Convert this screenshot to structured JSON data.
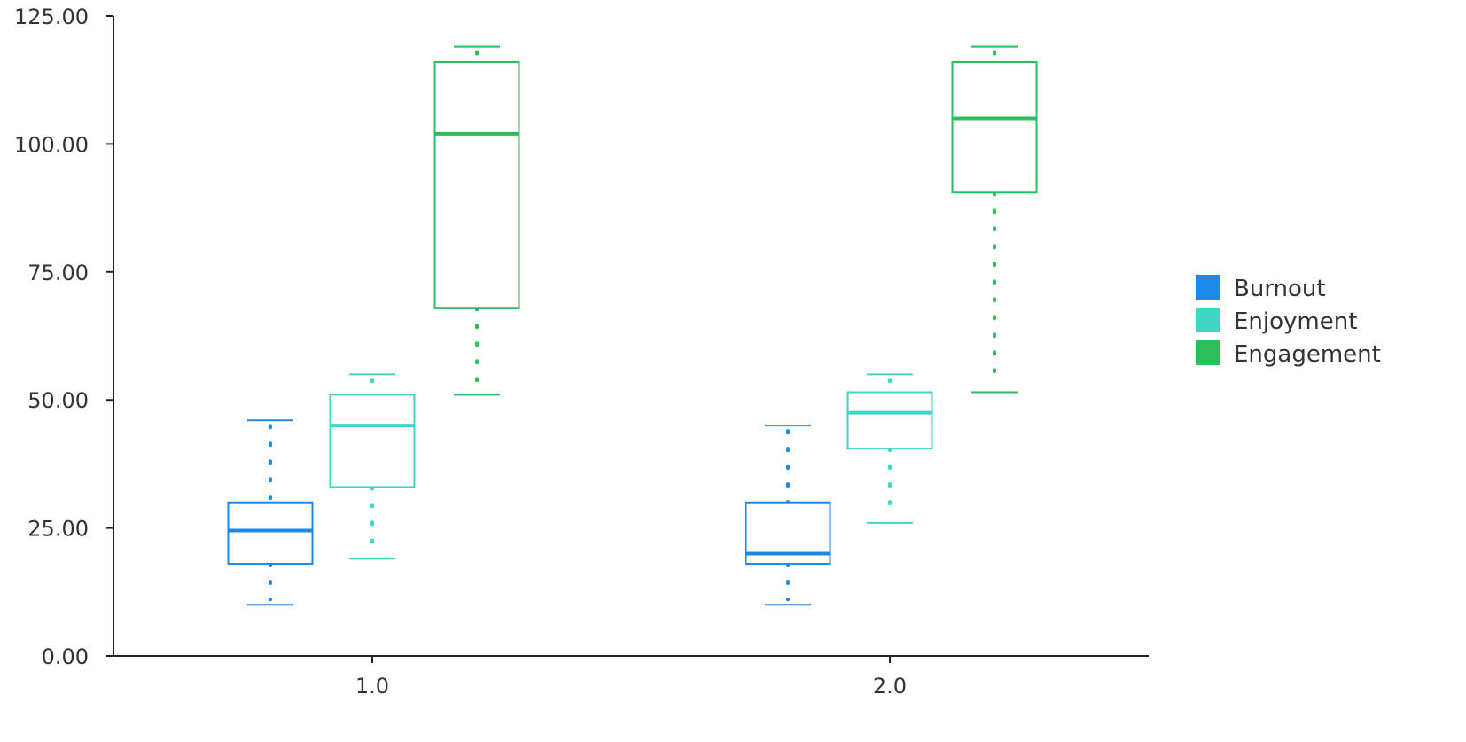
{
  "chart_data": {
    "type": "box",
    "title": "",
    "xlabel": "",
    "ylabel": "",
    "categories": [
      "1.0",
      "2.0"
    ],
    "ylim": [
      0,
      125
    ],
    "yticks": [
      "0.00",
      "25.00",
      "50.00",
      "75.00",
      "100.00",
      "125.00"
    ],
    "grid": false,
    "legend_position": "right",
    "series": [
      {
        "name": "Burnout",
        "color": "#1E88E5",
        "boxes": [
          {
            "min": 10,
            "q1": 18,
            "median": 24.5,
            "q3": 30,
            "max": 46
          },
          {
            "min": 10,
            "q1": 18,
            "median": 20,
            "q3": 30,
            "max": 45
          }
        ]
      },
      {
        "name": "Enjoyment",
        "color": "#40D6C6",
        "boxes": [
          {
            "min": 19,
            "q1": 33,
            "median": 45,
            "q3": 51,
            "max": 55
          },
          {
            "min": 26,
            "q1": 40.5,
            "median": 47.5,
            "q3": 51.5,
            "max": 55
          }
        ]
      },
      {
        "name": "Engagement",
        "color": "#2DBE5C",
        "boxes": [
          {
            "min": 51,
            "q1": 68,
            "median": 102,
            "q3": 116,
            "max": 119
          },
          {
            "min": 51.5,
            "q1": 90.5,
            "median": 105,
            "q3": 116,
            "max": 119
          }
        ]
      }
    ]
  }
}
